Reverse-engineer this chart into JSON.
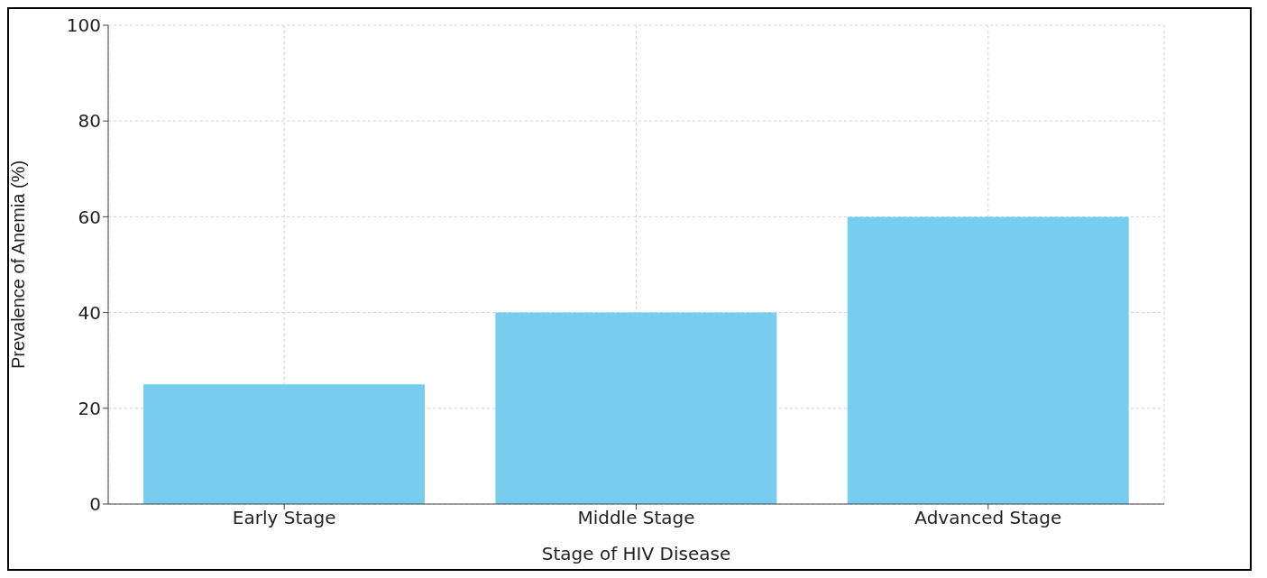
{
  "chart_data": {
    "type": "bar",
    "xlabel": "Stage of HIV Disease",
    "ylabel": "Prevalence of Anemia (%)",
    "categories": [
      "Early Stage",
      "Middle Stage",
      "Advanced Stage"
    ],
    "values": [
      25,
      40,
      60
    ],
    "color": "#76cdef",
    "ylim": [
      0,
      100
    ],
    "yticks": [
      0,
      20,
      40,
      60,
      80,
      100
    ],
    "grid": true
  }
}
